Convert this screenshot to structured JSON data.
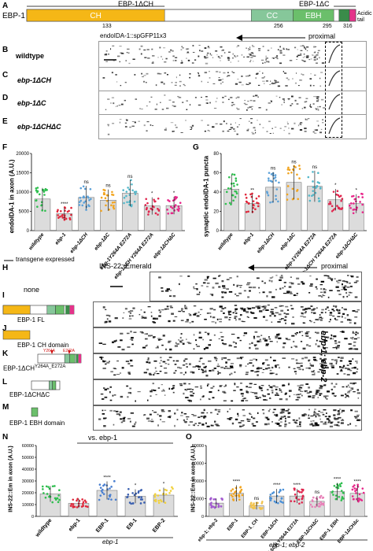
{
  "panel_A": {
    "label": "A",
    "protein": "EBP-1",
    "del_ch_label": "EBP-1ΔCH",
    "del_c_label": "EBP-1ΔC",
    "domains": [
      {
        "name": "CH",
        "start": 1,
        "end": 133,
        "color": "#f5b716"
      },
      {
        "name": "CC",
        "start": 216,
        "end": 256,
        "color": "#86c79a"
      },
      {
        "name": "EBH",
        "start": 256,
        "end": 295,
        "color": "#6bbf6b"
      },
      {
        "name": "",
        "start": 300,
        "end": 310,
        "color": "#3a8c4a"
      },
      {
        "name": "",
        "start": 310,
        "end": 316,
        "color": "#e4338a"
      }
    ],
    "positions": [
      "133",
      "256",
      "295",
      "316"
    ],
    "acidic_tail": "Acidic tail"
  },
  "panel_B_E": {
    "reporter": "endoIDA-1::spGFP11x3",
    "proximal": "proximal",
    "rows": [
      {
        "label": "B",
        "genotype": "wildtype"
      },
      {
        "label": "C",
        "genotype": "ebp-1ΔCH"
      },
      {
        "label": "D",
        "genotype": "ebp-1ΔC"
      },
      {
        "label": "E",
        "genotype": "ebp-1ΔCHΔC"
      }
    ]
  },
  "panel_F": {
    "label": "F",
    "ylabel": "endoIDA-1 in axon (A.U.)",
    "categories": [
      "wildtype",
      "ebp-1",
      "ebp-1ΔCH",
      "ebp-1ΔC",
      "ebp-1Y264A E272A",
      "ebp-1ΔCH Y264A E272A",
      "ebp-1ΔCHΔC"
    ],
    "significance": [
      "",
      "****",
      "ns",
      "ns",
      "ns",
      "*",
      "*"
    ]
  },
  "panel_G": {
    "label": "G",
    "ylabel": "synaptic endoIDA-1 puncta",
    "categories": [
      "wildtype",
      "ebp-1",
      "ebp-1ΔCH",
      "ebp-1ΔC",
      "ebp-1Y264A E272A",
      "ebp-1ΔCH Y264A E272A",
      "ebp-1ΔCHΔC"
    ],
    "significance": [
      "",
      "**",
      "ns",
      "ns",
      "ns",
      "*",
      "*"
    ]
  },
  "panel_H_M": {
    "transgene_header": "transgene expressed",
    "reporter": "INS-22::Emerald",
    "proximal": "proximal",
    "side_label": "ebp-1; ebp-2",
    "rows": [
      {
        "label": "H",
        "name": "none"
      },
      {
        "label": "I",
        "name": "EBP-1 FL"
      },
      {
        "label": "J",
        "name": "EBP-1 CH domain"
      },
      {
        "label": "K",
        "name": "EBP-1ΔCH",
        "sup": "Y264A_E272A",
        "mut1": "Y264A",
        "mut2": "E272A"
      },
      {
        "label": "L",
        "name": "EBP-1ΔCHΔC"
      },
      {
        "label": "M",
        "name": "EBP-1 EBH domain"
      }
    ]
  },
  "panel_N": {
    "label": "N",
    "ylabel": "INS-22::Em in axon (A.U.)",
    "comparison": "vs. ebp-1",
    "group_label": "ebp-1",
    "categories": [
      "wildtype",
      "ebp-1",
      "EBP-1",
      "EB-1",
      "EBP-2"
    ],
    "significance": [
      "",
      "",
      "****",
      "*",
      "*"
    ]
  },
  "panel_O": {
    "label": "O",
    "ylabel": "INS-22::Em in axon (A.U.)",
    "group_label": "ebp-1; ebp-2",
    "categories": [
      "ebp-1; ebp-2",
      "EBP-1",
      "EBP-1_CH",
      "EBP-1ΔCH",
      "EBP-1ΔCH Y264A E272A",
      "EBP-1ΔCHΔC",
      "EBP-1_EBH",
      "EBP-1ΔCHΔc"
    ],
    "significance": [
      "",
      "****",
      "ns",
      "****",
      "****",
      "ns",
      "****",
      "****"
    ]
  },
  "chart_data": [
    {
      "type": "bar",
      "panel": "F",
      "ylabel": "endoIDA-1 in axon (A.U.)",
      "categories": [
        "wildtype",
        "ebp-1",
        "ebp-1ΔCH",
        "ebp-1ΔC",
        "ebp-1Y264A E272A",
        "ebp-1ΔCH Y264A E272A",
        "ebp-1ΔCHΔC"
      ],
      "values": [
        8200,
        4400,
        8600,
        7900,
        9700,
        6400,
        6500
      ],
      "ylim": [
        0,
        20000
      ],
      "yticks": [
        "0",
        "5000",
        "10000",
        "15000",
        "20000"
      ],
      "colors": [
        "#2fbf4f",
        "#e0263a",
        "#5aa0d8",
        "#f2a41e",
        "#53b7c9",
        "#e0264e",
        "#e8268a"
      ]
    },
    {
      "type": "bar",
      "panel": "G",
      "ylabel": "synaptic endoIDA-1 puncta",
      "categories": [
        "wildtype",
        "ebp-1",
        "ebp-1ΔCH",
        "ebp-1ΔC",
        "ebp-1Y264A E272A",
        "ebp-1ΔCH Y264A E272A",
        "ebp-1ΔCHΔC"
      ],
      "values": [
        43,
        28,
        45,
        50,
        46,
        32,
        28
      ],
      "ylim": [
        0,
        80
      ],
      "yticks": [
        "0",
        "20",
        "40",
        "60",
        "80"
      ],
      "colors": [
        "#2fbf4f",
        "#e0263a",
        "#5aa0d8",
        "#f2a41e",
        "#53b7c9",
        "#e0264e",
        "#e8268a"
      ]
    },
    {
      "type": "bar",
      "panel": "N",
      "ylabel": "INS-22::Em in axon (A.U.)",
      "categories": [
        "wildtype",
        "ebp-1",
        "EBP-1",
        "EB-1",
        "EBP-2"
      ],
      "values": [
        19000,
        11000,
        22000,
        17000,
        18000
      ],
      "ylim": [
        0,
        60000
      ],
      "yticks": [
        "0",
        "10000",
        "20000",
        "30000",
        "40000",
        "50000",
        "60000"
      ],
      "colors": [
        "#2fbf4f",
        "#e0263a",
        "#4a7fd0",
        "#3a5fb0",
        "#f2d23e"
      ]
    },
    {
      "type": "bar",
      "panel": "O",
      "ylabel": "INS-22::Em in axon (A.U.)",
      "categories": [
        "ebp-1; ebp-2",
        "EBP-1",
        "EBP-1_CH",
        "EBP-1ΔCH",
        "EBP-1ΔCH Y264A E272A",
        "EBP-1ΔCHΔC",
        "EBP-1_EBH",
        "EBP-1ΔCHΔc"
      ],
      "values": [
        15000,
        26000,
        12000,
        23000,
        23000,
        17000,
        28000,
        26000
      ],
      "ylim": [
        0,
        80000
      ],
      "yticks": [
        "0",
        "20000",
        "40000",
        "60000",
        "80000"
      ],
      "colors": [
        "#a35ad0",
        "#f2a41e",
        "#f2c34e",
        "#4a90d8",
        "#e0264e",
        "#e880b8",
        "#2fbf4f",
        "#e8268a"
      ]
    }
  ]
}
